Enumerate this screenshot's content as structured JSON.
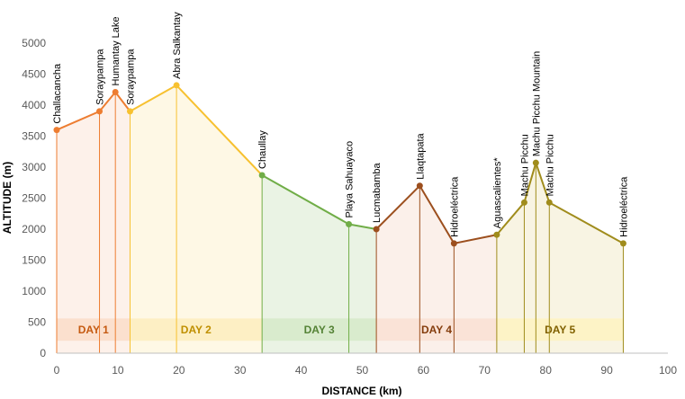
{
  "chart_data": {
    "type": "line",
    "xlabel": "DISTANCE (km)",
    "ylabel": "ALTITUDE (m)",
    "xlim": [
      0,
      100
    ],
    "ylim": [
      0,
      5000
    ],
    "x_ticks": [
      "0",
      "10",
      "20",
      "30",
      "40",
      "50",
      "60",
      "70",
      "80",
      "90",
      "100"
    ],
    "y_ticks": [
      "0",
      "500",
      "1000",
      "1500",
      "2000",
      "2500",
      "3000",
      "3500",
      "4000",
      "4500",
      "5000"
    ],
    "points": [
      {
        "label": "Challacancha",
        "x": 0,
        "y": 3600
      },
      {
        "label": "Soraypampa",
        "x": 7,
        "y": 3900
      },
      {
        "label": "Humantay Lake",
        "x": 9.6,
        "y": 4210
      },
      {
        "label": "Soraypampa",
        "x": 12,
        "y": 3900
      },
      {
        "label": "Abra Salkantay",
        "x": 19.6,
        "y": 4320
      },
      {
        "label": "Chaullay",
        "x": 33.6,
        "y": 2870
      },
      {
        "label": "Playa Sahuayaco",
        "x": 47.8,
        "y": 2080
      },
      {
        "label": "Lucmabamba",
        "x": 52.3,
        "y": 2000
      },
      {
        "label": "Llaqtapata",
        "x": 59.4,
        "y": 2700
      },
      {
        "label": "Hidroeléctrica",
        "x": 65,
        "y": 1770
      },
      {
        "label": "Aguascalientes*",
        "x": 72,
        "y": 1910
      },
      {
        "label": "Machu Picchu",
        "x": 76.5,
        "y": 2430
      },
      {
        "label": "Machu Picchu Mountain",
        "x": 78.4,
        "y": 3070
      },
      {
        "label": "Machu Picchu",
        "x": 80.6,
        "y": 2430
      },
      {
        "label": "Hidroeléctrica",
        "x": 92.7,
        "y": 1770
      }
    ],
    "days": [
      {
        "name": "DAY 1",
        "start": 0,
        "end": 3,
        "x_range": [
          0,
          12
        ],
        "color": "#ED7D31",
        "band": "#FBE0CE",
        "fill": "#FDF1EA",
        "text": "#C55A11"
      },
      {
        "name": "DAY 2",
        "start": 3,
        "end": 5,
        "x_range": [
          12,
          33.6
        ],
        "color": "#F7C130",
        "band": "#FDEFC4",
        "fill": "#FEF8E5",
        "text": "#BF8F00"
      },
      {
        "name": "DAY 3",
        "start": 5,
        "end": 7,
        "x_range": [
          33.6,
          52.3
        ],
        "color": "#70AD47",
        "band": "#D9EBCD",
        "fill": "#EAF3E4",
        "text": "#548235"
      },
      {
        "name": "DAY 4",
        "start": 7,
        "end": 10,
        "x_range": [
          52.3,
          72
        ],
        "color": "#9C4F1E",
        "band": "#FAE3D7",
        "fill": "#FBF0EA",
        "text": "#843C0C"
      },
      {
        "name": "DAY 5",
        "start": 10,
        "end": 14,
        "x_range": [
          72,
          92.7
        ],
        "color": "#A08C1C",
        "band": "#FDF3C6",
        "fill": "#F8F4E3",
        "text": "#806000"
      }
    ],
    "band_range": [
      200,
      560
    ],
    "grid": false
  }
}
